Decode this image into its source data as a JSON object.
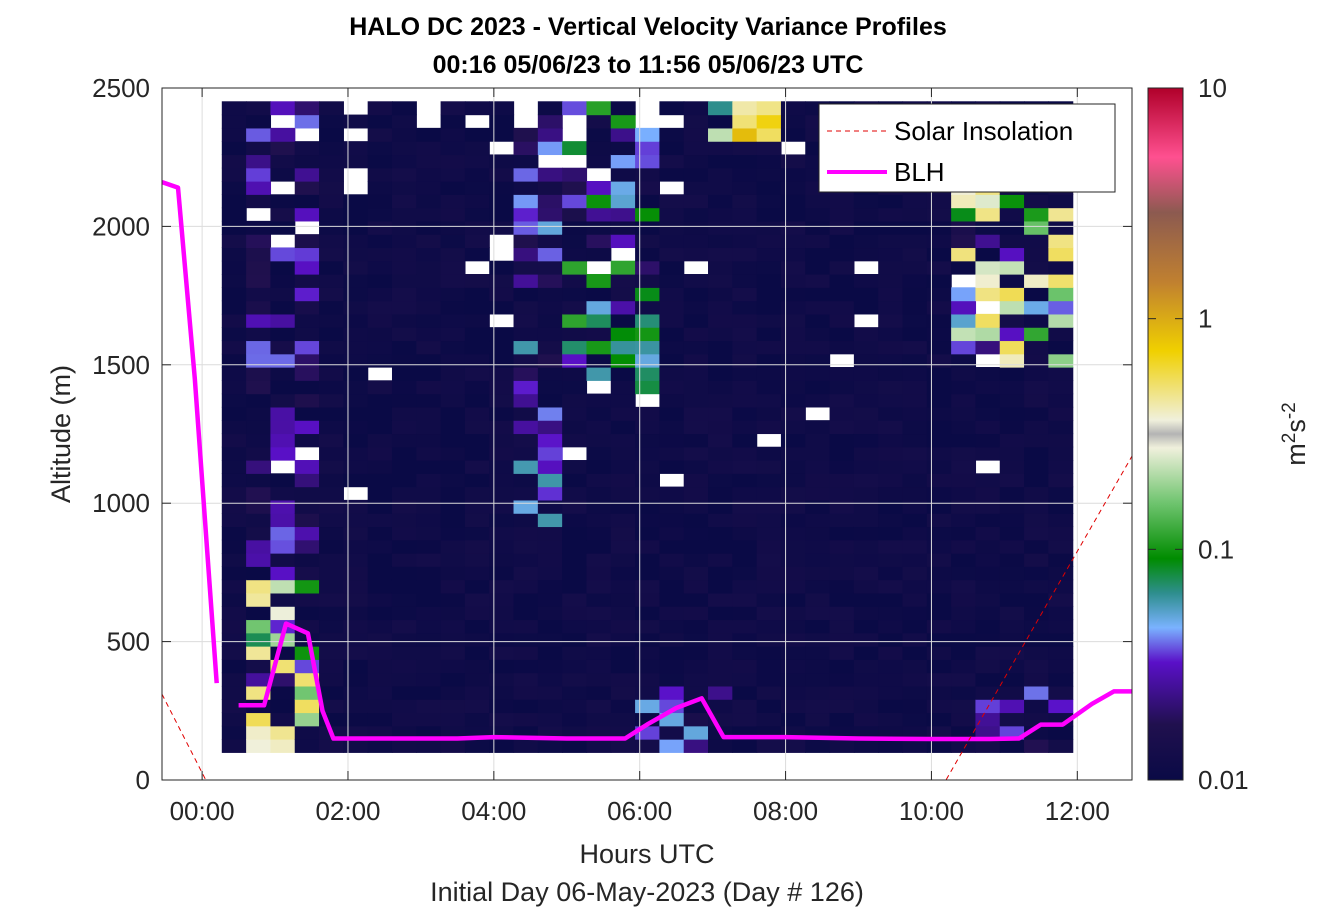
{
  "colors": {
    "background_bin": "#0a0a46",
    "blh": "#ff00ff",
    "solar": "#e00000",
    "colormap": [
      "#0a0a46",
      "#5a10c8",
      "#7ab2ff",
      "#2e8e8e",
      "#008c00",
      "#6ec46e",
      "#f0f0dc",
      "#f0d000",
      "#c08030",
      "#8c5a50",
      "#ff5090",
      "#b0002a"
    ]
  },
  "chart_data": {
    "type": "heatmap",
    "title": "HALO DC 2023 - Vertical Velocity Variance Profiles",
    "subtitle": "00:16 05/06/23 to 11:56 05/06/23  UTC",
    "xlabel": "Hours UTC",
    "footnote": "Initial Day 06-May-2023 (Day # 126)",
    "ylabel": "Altitude (m)",
    "xlim": [
      -0.55,
      12.75
    ],
    "ylim": [
      0,
      2500
    ],
    "xticks": [
      0,
      2,
      4,
      6,
      8,
      10,
      12
    ],
    "xtick_labels": [
      "00:00",
      "02:00",
      "04:00",
      "06:00",
      "08:00",
      "10:00",
      "12:00"
    ],
    "yticks": [
      0,
      500,
      1000,
      1500,
      2000,
      2500
    ],
    "ytick_labels": [
      "0",
      "500",
      "1000",
      "1500",
      "2000",
      "2500"
    ],
    "grid": true,
    "legend_position": "top-right",
    "colorbar": {
      "scale": "log",
      "label": "m2s-2",
      "range": [
        0.01,
        10
      ],
      "ticks": [
        0.01,
        0.1,
        1,
        10
      ],
      "tick_labels": [
        "0.01",
        "0.1",
        "1",
        "10"
      ]
    },
    "heatmap": {
      "description": "Variance of vertical velocity (m^2 s^-2) per time bin (~20 min) and altitude bin (~48 m), mostly ~0.01 with enhanced values in layers",
      "time_range_hours": [
        0.27,
        11.93
      ],
      "altitude_range_m": [
        100,
        2450
      ],
      "base_value": 0.01,
      "features": [
        {
          "name": "morning convective layer",
          "x": [
            0.7,
            1.6
          ],
          "y": [
            100,
            700
          ],
          "peak": 0.5
        },
        {
          "name": "early residual column",
          "x": [
            0.7,
            1.6
          ],
          "y": [
            700,
            2450
          ],
          "peak": 0.04
        },
        {
          "name": "mid layer plume",
          "x": [
            4.2,
            5.1
          ],
          "y": [
            900,
            2450
          ],
          "peak": 0.06
        },
        {
          "name": "upper column 05-06h",
          "x": [
            4.9,
            6.2
          ],
          "y": [
            1400,
            2500
          ],
          "peak": 0.12
        },
        {
          "name": "aloft layer 07-08h",
          "x": [
            6.8,
            8.0
          ],
          "y": [
            2300,
            2500
          ],
          "peak": 0.9
        },
        {
          "name": "near-surface 06-07h",
          "x": [
            5.8,
            7.2
          ],
          "y": [
            100,
            350
          ],
          "peak": 0.06
        },
        {
          "name": "late upper layer",
          "x": [
            10.4,
            11.9
          ],
          "y": [
            1500,
            2150
          ],
          "peak": 0.5
        },
        {
          "name": "late surface layer",
          "x": [
            10.6,
            11.9
          ],
          "y": [
            100,
            350
          ],
          "peak": 0.04
        }
      ]
    },
    "series": [
      {
        "name": "BLH",
        "style": "solid",
        "segments": [
          [
            [
              -0.55,
              2160
            ],
            [
              -0.33,
              2140
            ],
            [
              -0.1,
              1450
            ],
            [
              0.2,
              350
            ]
          ],
          [
            [
              0.5,
              270
            ],
            [
              0.85,
              270
            ],
            [
              1.15,
              565
            ],
            [
              1.45,
              530
            ],
            [
              1.65,
              250
            ],
            [
              1.8,
              150
            ],
            [
              2.5,
              150
            ],
            [
              3.5,
              150
            ],
            [
              4.0,
              155
            ],
            [
              5.0,
              150
            ],
            [
              5.8,
              150
            ],
            [
              6.1,
              200
            ],
            [
              6.5,
              260
            ],
            [
              6.85,
              295
            ],
            [
              7.15,
              155
            ],
            [
              8.0,
              155
            ],
            [
              9.0,
              150
            ],
            [
              10.0,
              148
            ],
            [
              10.8,
              148
            ],
            [
              11.2,
              150
            ],
            [
              11.5,
              200
            ],
            [
              11.8,
              200
            ],
            [
              12.2,
              275
            ],
            [
              12.5,
              320
            ],
            [
              12.75,
              320
            ]
          ]
        ]
      },
      {
        "name": "Solar Insolation",
        "style": "dashed",
        "segments": [
          [
            [
              -0.55,
              310
            ],
            [
              0.05,
              0
            ],
            [
              10.2,
              0
            ],
            [
              12.75,
              1170
            ]
          ]
        ]
      }
    ]
  }
}
